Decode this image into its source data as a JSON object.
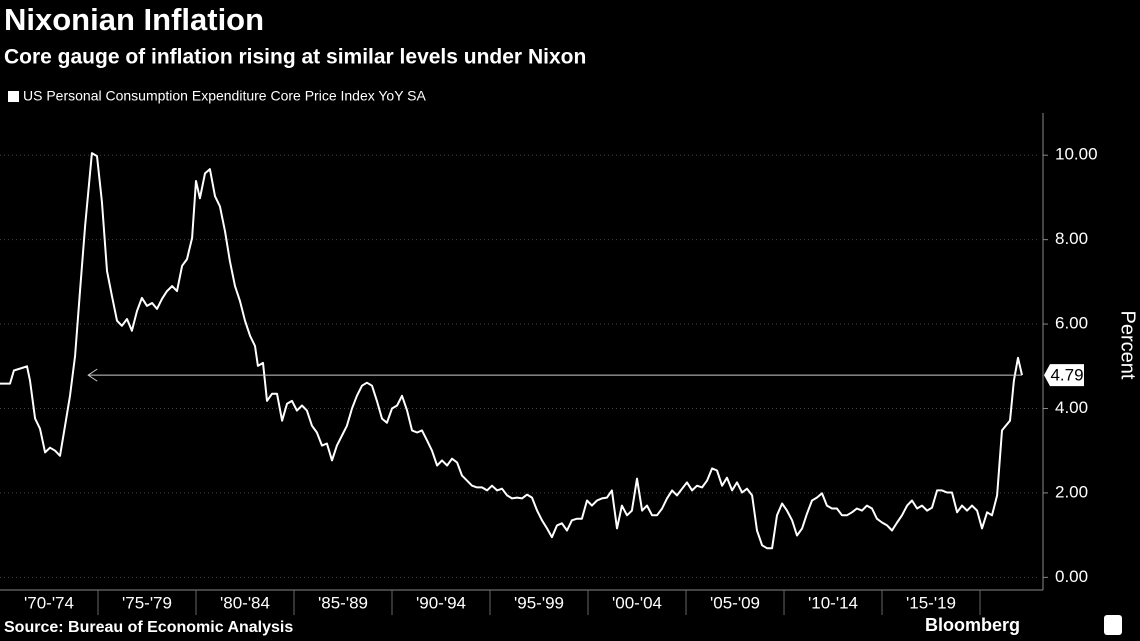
{
  "chart_data": {
    "type": "line",
    "title": "Nixonian Inflation",
    "subtitle": "Core gauge of inflation rising at similar levels under Nixon",
    "y_label": "Percent",
    "source": "Source: Bureau of Economic Analysis",
    "brand": "Bloomberg",
    "annotation": {
      "value": 4.79,
      "label": "4.79",
      "x_from": 2022.14,
      "x_to": 1974.5
    },
    "series": [
      {
        "name": "US Personal Consumption Expenditure Core Price Index YoY SA",
        "color": "#ffffff",
        "x": [
          1970.0,
          1970.51,
          1970.71,
          1971.12,
          1971.38,
          1971.53,
          1971.79,
          1972.04,
          1972.3,
          1972.55,
          1972.81,
          1973.06,
          1973.32,
          1973.57,
          1973.83,
          1974.08,
          1974.34,
          1974.69,
          1974.95,
          1975.2,
          1975.46,
          1975.71,
          1975.97,
          1976.22,
          1976.48,
          1976.73,
          1976.99,
          1977.24,
          1977.5,
          1977.76,
          1978.01,
          1978.27,
          1978.52,
          1978.78,
          1979.03,
          1979.29,
          1979.54,
          1979.8,
          1980.0,
          1980.2,
          1980.46,
          1980.71,
          1980.97,
          1981.22,
          1981.48,
          1981.73,
          1981.99,
          1982.24,
          1982.5,
          1982.76,
          1983.01,
          1983.16,
          1983.42,
          1983.62,
          1983.88,
          1984.13,
          1984.39,
          1984.64,
          1984.9,
          1985.15,
          1985.41,
          1985.66,
          1985.92,
          1986.17,
          1986.43,
          1986.68,
          1986.94,
          1987.19,
          1987.45,
          1987.7,
          1987.96,
          1988.21,
          1988.47,
          1988.72,
          1988.98,
          1989.23,
          1989.49,
          1989.74,
          1990.0,
          1990.26,
          1990.51,
          1990.77,
          1991.02,
          1991.28,
          1991.53,
          1991.79,
          1992.04,
          1992.3,
          1992.55,
          1992.81,
          1993.06,
          1993.32,
          1993.57,
          1993.83,
          1994.08,
          1994.34,
          1994.59,
          1994.85,
          1995.1,
          1995.36,
          1995.61,
          1995.87,
          1996.12,
          1996.38,
          1996.63,
          1996.89,
          1997.14,
          1997.4,
          1997.65,
          1997.91,
          1998.16,
          1998.42,
          1998.67,
          1998.93,
          1999.18,
          1999.44,
          1999.69,
          1999.95,
          2000.2,
          2000.46,
          2000.71,
          2000.97,
          2001.22,
          2001.48,
          2001.73,
          2001.99,
          2002.24,
          2002.5,
          2002.76,
          2003.01,
          2003.27,
          2003.52,
          2003.78,
          2004.03,
          2004.29,
          2004.54,
          2004.8,
          2005.05,
          2005.31,
          2005.56,
          2005.82,
          2006.07,
          2006.33,
          2006.58,
          2006.84,
          2007.09,
          2007.35,
          2007.6,
          2007.86,
          2008.11,
          2008.37,
          2008.62,
          2008.88,
          2009.13,
          2009.39,
          2009.64,
          2009.9,
          2010.15,
          2010.41,
          2010.66,
          2010.92,
          2011.17,
          2011.43,
          2011.68,
          2011.94,
          2012.19,
          2012.45,
          2012.7,
          2012.96,
          2013.21,
          2013.47,
          2013.72,
          2013.98,
          2014.23,
          2014.49,
          2014.74,
          2015.0,
          2015.26,
          2015.51,
          2015.77,
          2016.02,
          2016.28,
          2016.53,
          2016.79,
          2017.04,
          2017.3,
          2017.55,
          2017.81,
          2018.06,
          2018.32,
          2018.57,
          2018.83,
          2019.08,
          2019.34,
          2019.59,
          2019.85,
          2020.1,
          2020.36,
          2020.61,
          2020.87,
          2021.12,
          2021.33,
          2021.53,
          2021.73,
          2021.94,
          2022.14
        ],
        "values": [
          4.59,
          4.59,
          4.9,
          4.96,
          5.0,
          4.66,
          3.76,
          3.52,
          2.96,
          3.07,
          3.0,
          2.88,
          3.6,
          4.3,
          5.25,
          6.78,
          8.32,
          10.05,
          9.98,
          8.9,
          7.26,
          6.67,
          6.08,
          5.96,
          6.12,
          5.84,
          6.31,
          6.62,
          6.43,
          6.5,
          6.36,
          6.6,
          6.78,
          6.9,
          6.78,
          7.38,
          7.54,
          8.04,
          9.39,
          8.98,
          9.57,
          9.67,
          9.03,
          8.79,
          8.2,
          7.49,
          6.9,
          6.55,
          6.08,
          5.72,
          5.48,
          5.01,
          5.08,
          4.18,
          4.35,
          4.35,
          3.71,
          4.11,
          4.18,
          3.95,
          4.07,
          3.95,
          3.59,
          3.43,
          3.12,
          3.17,
          2.77,
          3.12,
          3.36,
          3.59,
          4.0,
          4.3,
          4.54,
          4.61,
          4.54,
          4.18,
          3.76,
          3.66,
          4.0,
          4.07,
          4.3,
          3.95,
          3.48,
          3.43,
          3.48,
          3.24,
          3.0,
          2.65,
          2.77,
          2.65,
          2.81,
          2.72,
          2.41,
          2.29,
          2.17,
          2.13,
          2.13,
          2.06,
          2.17,
          2.06,
          2.1,
          1.94,
          1.87,
          1.89,
          1.87,
          1.96,
          1.89,
          1.58,
          1.35,
          1.16,
          0.95,
          1.23,
          1.28,
          1.11,
          1.35,
          1.39,
          1.39,
          1.82,
          1.7,
          1.82,
          1.87,
          1.89,
          2.06,
          1.16,
          1.7,
          1.47,
          1.58,
          2.34,
          1.58,
          1.7,
          1.47,
          1.47,
          1.63,
          1.87,
          2.06,
          1.94,
          2.1,
          2.25,
          2.06,
          2.17,
          2.13,
          2.29,
          2.58,
          2.53,
          2.17,
          2.36,
          2.06,
          2.25,
          2.01,
          2.1,
          1.94,
          1.11,
          0.76,
          0.69,
          0.69,
          1.47,
          1.75,
          1.58,
          1.35,
          0.99,
          1.16,
          1.51,
          1.82,
          1.89,
          1.99,
          1.7,
          1.63,
          1.63,
          1.47,
          1.47,
          1.54,
          1.63,
          1.58,
          1.7,
          1.63,
          1.39,
          1.3,
          1.23,
          1.11,
          1.3,
          1.47,
          1.7,
          1.82,
          1.63,
          1.7,
          1.58,
          1.65,
          2.06,
          2.06,
          2.01,
          2.01,
          1.54,
          1.7,
          1.58,
          1.7,
          1.58,
          1.16,
          1.54,
          1.47,
          1.94,
          3.48,
          3.6,
          3.71,
          4.66,
          5.2,
          4.79
        ]
      }
    ],
    "xlim": [
      1970,
      2023.06
    ],
    "xticks": [
      {
        "value": 1970,
        "label": "'70-'74"
      },
      {
        "value": 1975,
        "label": "'75-'79"
      },
      {
        "value": 1980,
        "label": "'80-'84"
      },
      {
        "value": 1985,
        "label": "'85-'89"
      },
      {
        "value": 1990,
        "label": "'90-'94"
      },
      {
        "value": 1995,
        "label": "'95-'99"
      },
      {
        "value": 2000,
        "label": "'00-'04"
      },
      {
        "value": 2005,
        "label": "'05-'09"
      },
      {
        "value": 2010,
        "label": "'10-'14"
      },
      {
        "value": 2015,
        "label": "'15-'19"
      },
      {
        "value": 2020,
        "label": ""
      }
    ],
    "ylim": [
      -0.3,
      11
    ],
    "yticks": [
      {
        "value": 0,
        "label": "0.00"
      },
      {
        "value": 2,
        "label": "2.00"
      },
      {
        "value": 4,
        "label": "4.00"
      },
      {
        "value": 6,
        "label": "6.00"
      },
      {
        "value": 8,
        "label": "8.00"
      },
      {
        "value": 10,
        "label": "10.00"
      }
    ],
    "grid": true
  }
}
